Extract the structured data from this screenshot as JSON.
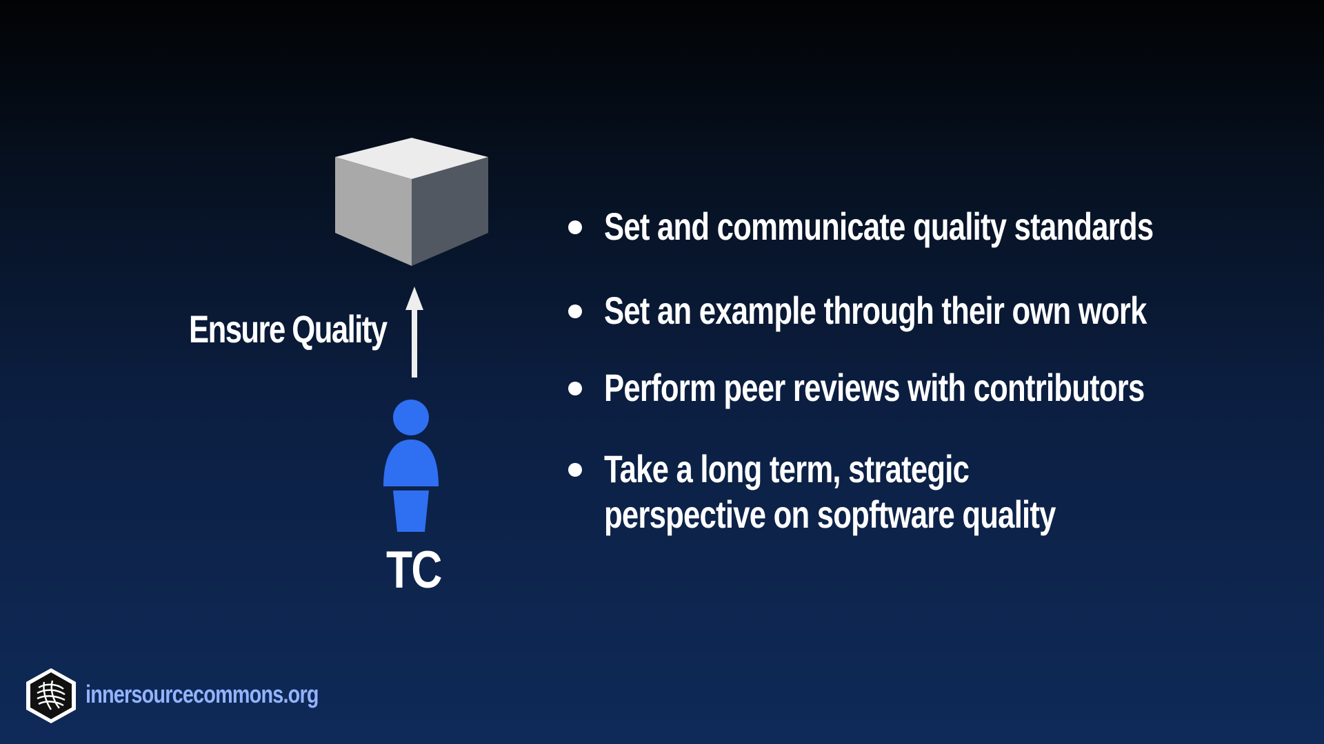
{
  "diagram": {
    "arrow_label": "Ensure Quality",
    "role_label": "TC",
    "person_color": "#2f6ff2",
    "cube_top_color": "#ececec",
    "cube_left_color": "#a9a9a9",
    "cube_right_color": "#515861"
  },
  "bullets": [
    {
      "text": "Set and communicate quality standards"
    },
    {
      "text": "Set an example through their own work"
    },
    {
      "text": "Perform peer reviews with contributors"
    },
    {
      "text": "Take a long term, strategic\nperspective on sopftware quality"
    }
  ],
  "footer": {
    "url": "innersourcecommons.org",
    "url_color": "#93b4ff",
    "logo_icon": "innersource-commons-logo-icon"
  }
}
